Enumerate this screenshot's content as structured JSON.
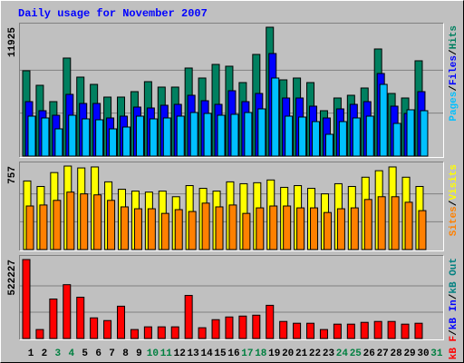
{
  "chart_data": {
    "type": "bar",
    "title": "Daily usage for November 2007",
    "separator": "/",
    "categories": [
      "1",
      "2",
      "3",
      "4",
      "5",
      "6",
      "7",
      "8",
      "9",
      "10",
      "11",
      "12",
      "13",
      "14",
      "15",
      "16",
      "17",
      "18",
      "19",
      "20",
      "21",
      "22",
      "23",
      "24",
      "25",
      "26",
      "27",
      "28",
      "29",
      "30",
      "31"
    ],
    "category_colors": [
      "#000000",
      "#000000",
      "#008040",
      "#008040",
      "#000000",
      "#000000",
      "#000000",
      "#000000",
      "#000000",
      "#008040",
      "#008040",
      "#000000",
      "#000000",
      "#000000",
      "#000000",
      "#000000",
      "#008040",
      "#008040",
      "#000000",
      "#000000",
      "#000000",
      "#000000",
      "#000000",
      "#008040",
      "#008040",
      "#000000",
      "#000000",
      "#000000",
      "#000000",
      "#000000",
      "#008040"
    ],
    "panels": [
      {
        "ylim": [
          0,
          11925
        ],
        "yticks": [
          11925
        ],
        "legend_reverse": true,
        "series": [
          {
            "name": "Hits",
            "color": "#008060",
            "values": [
              7896,
              6552,
              5040,
              9072,
              7308,
              6636,
              5460,
              5460,
              5964,
              6888,
              6384,
              6384,
              8148,
              7224,
              8484,
              8316,
              6804,
              9408,
              11925,
              7056,
              7224,
              6804,
              4200,
              5376,
              5628,
              6300,
              9912,
              5796,
              5376,
              8820,
              null
            ]
          },
          {
            "name": "Files",
            "color": "#0000ff",
            "values": [
              5040,
              4200,
              3780,
              5712,
              4872,
              4872,
              3528,
              3696,
              4536,
              4452,
              4704,
              4788,
              5628,
              5124,
              4788,
              6048,
              5040,
              5796,
              9492,
              5376,
              5376,
              4620,
              3528,
              4368,
              4788,
              5040,
              7644,
              4620,
              3948,
              5964,
              null
            ]
          },
          {
            "name": "Pages",
            "color": "#00c0ff",
            "values": [
              3696,
              3528,
              2520,
              3780,
              3444,
              3360,
              2520,
              2688,
              3696,
              3444,
              3528,
              3696,
              4032,
              3948,
              3780,
              3864,
              4032,
              4368,
              7224,
              3696,
              3612,
              3192,
              2016,
              3192,
              3528,
              3696,
              6636,
              3024,
              4284,
              4200,
              null
            ]
          }
        ]
      },
      {
        "ylim": [
          0,
          757
        ],
        "yticks": [
          757
        ],
        "legend_reverse": true,
        "series": [
          {
            "name": "Visits",
            "color": "#ffff00",
            "values": [
              622,
              572,
              698,
              757,
              740,
              749,
              614,
              547,
              530,
              521,
              530,
              479,
              580,
              555,
              530,
              614,
              597,
              606,
              631,
              564,
              580,
              555,
              505,
              597,
              572,
              656,
              715,
              749,
              656,
              572,
              null
            ]
          },
          {
            "name": "Sites",
            "color": "#ff8000",
            "values": [
              395,
              404,
              446,
              521,
              505,
              496,
              446,
              387,
              370,
              370,
              328,
              362,
              345,
              421,
              387,
              404,
              328,
              378,
              395,
              395,
              378,
              378,
              336,
              370,
              378,
              454,
              479,
              479,
              429,
              353,
              null
            ]
          }
        ]
      },
      {
        "ylim": [
          0,
          522227
        ],
        "yticks": [
          522227
        ],
        "legend_reverse": false,
        "series": [
          {
            "name": "kB F",
            "color": "#ff0000",
            "values": [
              522227,
              59342,
              261100,
              356050,
              272960,
              136480,
              118680,
              213620,
              59340,
              77140,
              77140,
              77140,
              284830,
              71210,
              124610,
              142420,
              148350,
              154280,
              219560,
              112750,
              100880,
              100880,
              59340,
              94940,
              94940,
              106810,
              112750,
              112750,
              94940,
              100880,
              null
            ]
          },
          {
            "name": "kB In",
            "color": "#0000ff",
            "values": [
              0,
              0,
              0,
              0,
              0,
              0,
              0,
              0,
              0,
              0,
              0,
              0,
              0,
              0,
              0,
              0,
              0,
              0,
              0,
              0,
              0,
              0,
              0,
              0,
              0,
              0,
              0,
              0,
              0,
              0,
              null
            ]
          },
          {
            "name": "kB Out",
            "color": "#008080",
            "values": [
              0,
              0,
              0,
              0,
              0,
              0,
              0,
              0,
              0,
              0,
              0,
              0,
              0,
              0,
              0,
              0,
              0,
              0,
              0,
              0,
              0,
              0,
              0,
              0,
              0,
              0,
              0,
              0,
              0,
              0,
              null
            ]
          }
        ]
      }
    ]
  }
}
